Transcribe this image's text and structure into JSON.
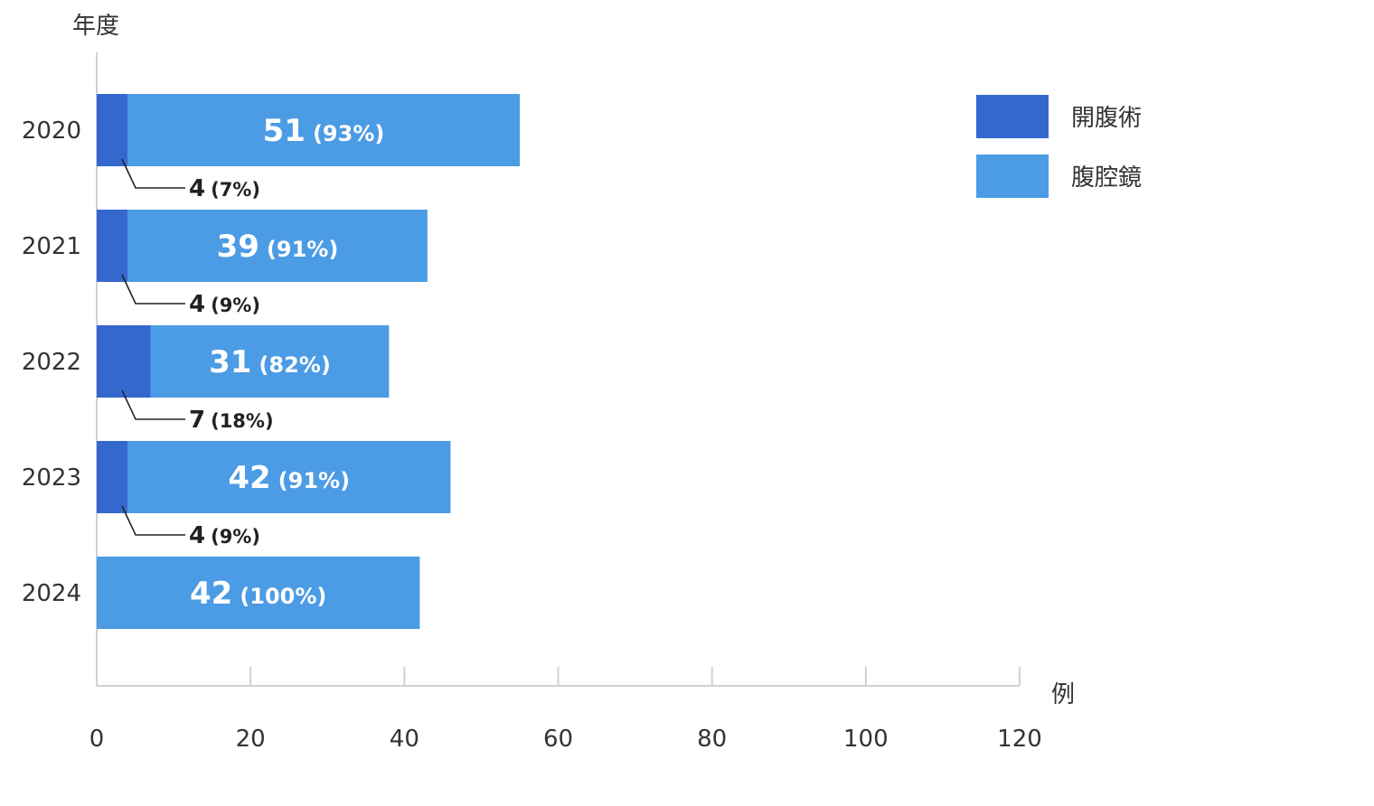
{
  "chart_data": {
    "type": "bar",
    "orientation": "horizontal",
    "stacked": true,
    "ylabel": "年度",
    "xlabel": "例",
    "xlim": [
      0,
      120
    ],
    "xticks": [
      0,
      20,
      40,
      60,
      80,
      100,
      120
    ],
    "categories": [
      "2020",
      "2021",
      "2022",
      "2023",
      "2024"
    ],
    "series": [
      {
        "name": "開腹術",
        "color": "#3568cf",
        "values": [
          4,
          4,
          7,
          4,
          0
        ],
        "labels": [
          "4",
          "4",
          "7",
          "4",
          ""
        ],
        "pct_labels": [
          "(7%)",
          "(9%)",
          "(18%)",
          "(9%)",
          ""
        ]
      },
      {
        "name": "腹腔鏡",
        "color": "#4b9be5",
        "values": [
          51,
          39,
          31,
          42,
          42
        ],
        "labels": [
          "51",
          "39",
          "31",
          "42",
          "42"
        ],
        "pct_labels": [
          "(93%)",
          "(91%)",
          "(82%)",
          "(91%)",
          "(100%)"
        ]
      }
    ],
    "legend": "top-right",
    "grid": false
  }
}
